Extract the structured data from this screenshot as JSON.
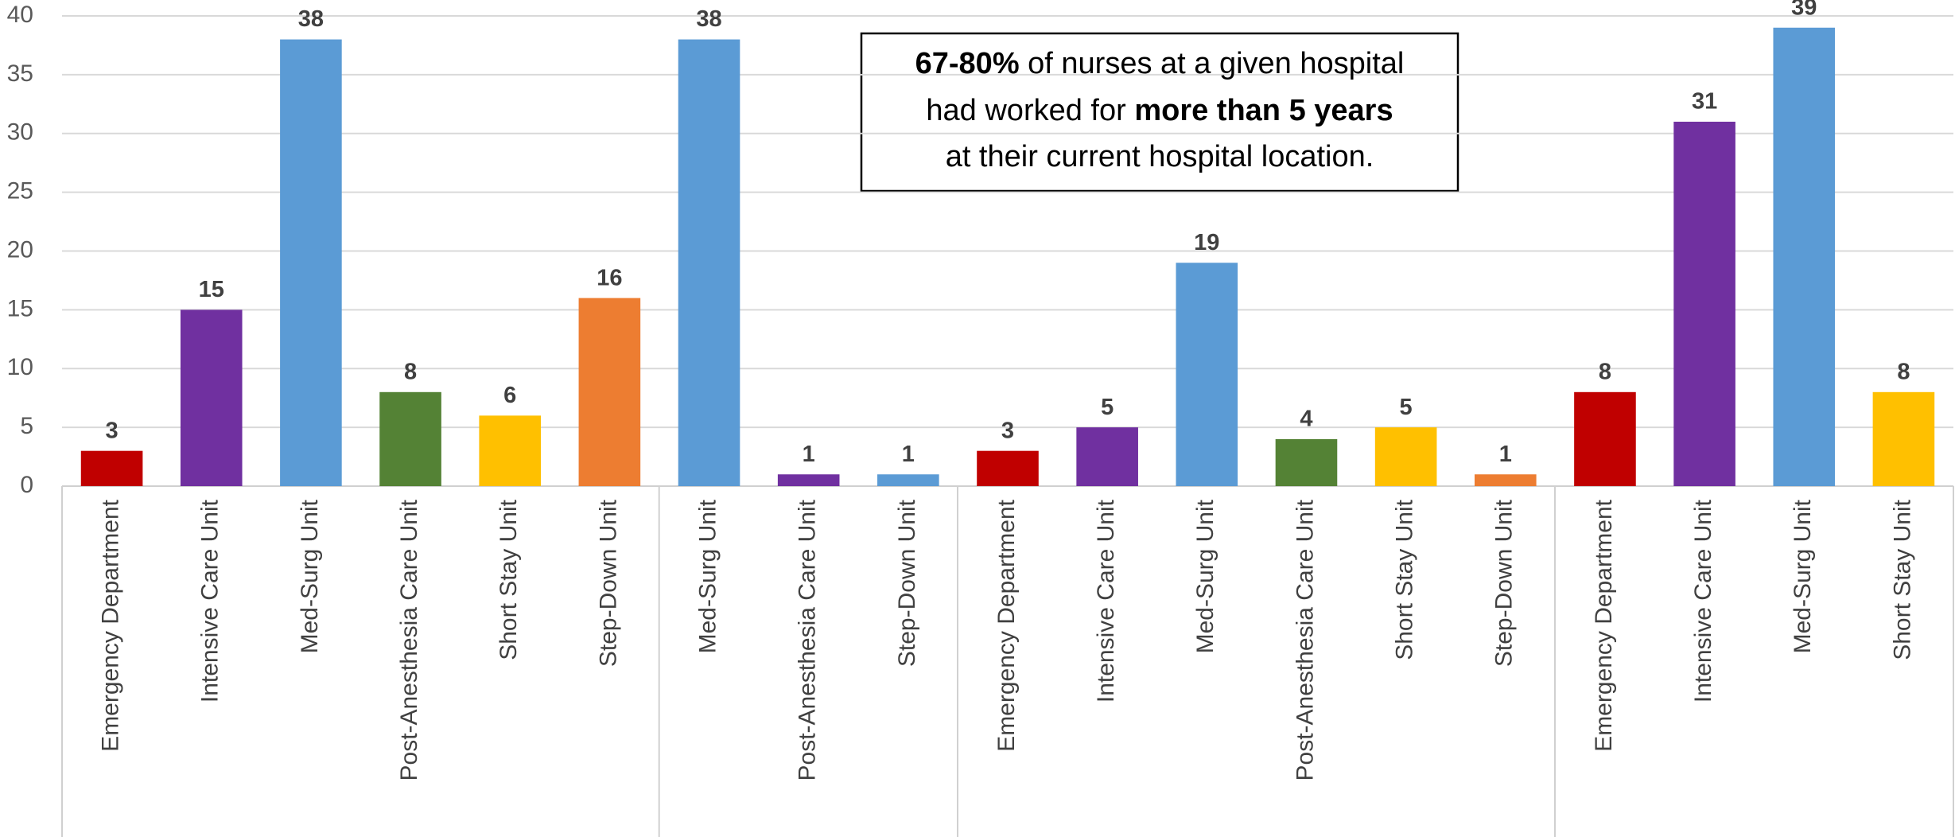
{
  "chart_data": {
    "type": "bar",
    "categories": [
      "Emergency Department",
      "Intensive Care Unit",
      "Med-Surg Unit",
      "Post-Anesthesia Care Unit",
      "Short Stay Unit",
      "Step-Down Unit",
      "Med-Surg Unit",
      "Post-Anesthesia Care Unit",
      "Step-Down Unit",
      "Emergency Department",
      "Intensive Care Unit",
      "Med-Surg Unit",
      "Post-Anesthesia Care Unit",
      "Short Stay Unit",
      "Step-Down Unit",
      "Emergency Department",
      "Intensive Care Unit",
      "Med-Surg Unit",
      "Short Stay Unit"
    ],
    "values": [
      3,
      15,
      38,
      8,
      6,
      16,
      38,
      1,
      1,
      3,
      5,
      19,
      4,
      5,
      1,
      8,
      31,
      39,
      8
    ],
    "colors": [
      "#c00000",
      "#7030a0",
      "#5b9bd5",
      "#548235",
      "#ffc000",
      "#ed7d31",
      "#5b9bd5",
      "#7030a0",
      "#5b9bd5",
      "#c00000",
      "#7030a0",
      "#5b9bd5",
      "#548235",
      "#ffc000",
      "#ed7d31",
      "#c00000",
      "#7030a0",
      "#5b9bd5",
      "#ffc000"
    ],
    "ylim": [
      0,
      40
    ],
    "yticks": [
      0,
      5,
      10,
      15,
      20,
      25,
      30,
      35,
      40
    ],
    "grid": true,
    "annotation": [
      [
        {
          "text": "67-80%",
          "bold": true
        },
        {
          "text": " of nurses at a given hospital",
          "bold": false
        }
      ],
      [
        {
          "text": "had worked for ",
          "bold": false
        },
        {
          "text": "more than 5 years",
          "bold": true
        }
      ],
      [
        {
          "text": "at their current hospital location.",
          "bold": false
        }
      ]
    ]
  }
}
